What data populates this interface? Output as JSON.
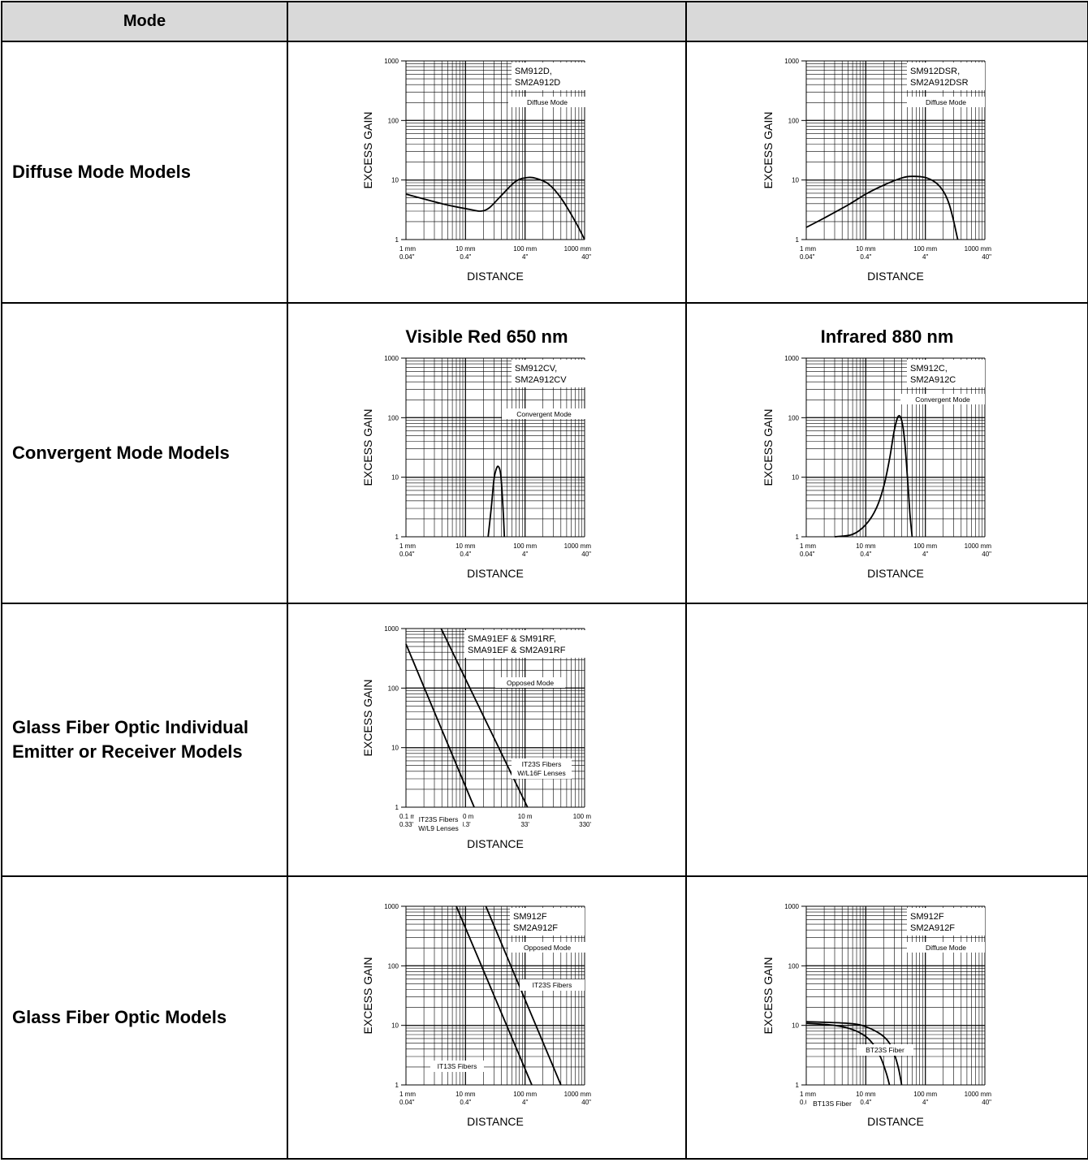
{
  "header": {
    "col_mode": "Mode",
    "col_2": "",
    "col_3": ""
  },
  "rows": [
    {
      "label_lines": [
        "Diffuse Mode Models"
      ]
    },
    {
      "label_lines": [
        "Convergent Mode Models"
      ],
      "col2_title": "Visible Red 650 nm",
      "col3_title": "Infrared 880 nm"
    },
    {
      "label_lines": [
        "Glass Fiber Optic Individual",
        "Emitter or Receiver Models"
      ]
    },
    {
      "label_lines": [
        "Glass Fiber Optic Models"
      ]
    }
  ],
  "chart_data": [
    {
      "id": "c1",
      "type": "line",
      "ylabel": "EXCESS GAIN",
      "xlabel": "DISTANCE",
      "x_scale": "log",
      "y_scale": "log",
      "xlim_mm": [
        1,
        1000
      ],
      "ylim": [
        1,
        1000
      ],
      "x_ticks": [
        [
          "1 mm",
          "0.04\""
        ],
        [
          "10 mm",
          "0.4\""
        ],
        [
          "100 mm",
          "4\""
        ],
        [
          "1000 mm",
          "40\""
        ]
      ],
      "y_ticks": [
        "1",
        "10",
        "100",
        "1000"
      ],
      "legend": [
        "SM912D,",
        "SM2A912D"
      ],
      "mode_label": "Diffuse Mode",
      "series": [
        {
          "x_mm": [
            1,
            2,
            5,
            12,
            18,
            25,
            40,
            70,
            110,
            160,
            250,
            400,
            700,
            1000
          ],
          "y": [
            5.8,
            4.8,
            3.8,
            3.2,
            3.0,
            3.4,
            5.5,
            9.5,
            11,
            10.5,
            8.5,
            5,
            2,
            1
          ]
        }
      ]
    },
    {
      "id": "c2",
      "type": "line",
      "ylabel": "EXCESS GAIN",
      "xlabel": "DISTANCE",
      "x_scale": "log",
      "y_scale": "log",
      "xlim_mm": [
        1,
        1000
      ],
      "ylim": [
        1,
        1000
      ],
      "x_ticks": [
        [
          "1 mm",
          "0.04\""
        ],
        [
          "10 mm",
          "0.4\""
        ],
        [
          "100 mm",
          "4\""
        ],
        [
          "1000 mm",
          "40\""
        ]
      ],
      "y_ticks": [
        "1",
        "10",
        "100",
        "1000"
      ],
      "legend": [
        "SM912DSR,",
        "SM2A912DSR"
      ],
      "mode_label": "Diffuse Mode",
      "series": [
        {
          "x_mm": [
            1,
            2,
            5,
            10,
            20,
            40,
            60,
            100,
            150,
            200,
            250,
            300,
            350
          ],
          "y": [
            1.6,
            2.3,
            3.8,
            5.8,
            8.2,
            10.8,
            11.5,
            11,
            9,
            6.5,
            4,
            2,
            1
          ]
        }
      ]
    },
    {
      "id": "c3",
      "type": "line",
      "ylabel": "EXCESS GAIN",
      "xlabel": "DISTANCE",
      "x_scale": "log",
      "y_scale": "log",
      "xlim_mm": [
        1,
        1000
      ],
      "ylim": [
        1,
        1000
      ],
      "x_ticks": [
        [
          "1 mm",
          "0.04\""
        ],
        [
          "10 mm",
          "0.4\""
        ],
        [
          "100 mm",
          "4\""
        ],
        [
          "1000 mm",
          "40\""
        ]
      ],
      "y_ticks": [
        "1",
        "10",
        "100",
        "1000"
      ],
      "legend": [
        "SM912CV,",
        "SM2A912CV"
      ],
      "mode_label": "Convergent Mode",
      "series": [
        {
          "x_mm": [
            24,
            27,
            30,
            33,
            36,
            39,
            42,
            45
          ],
          "y": [
            1,
            3,
            9,
            14,
            15,
            11,
            4,
            1
          ]
        }
      ]
    },
    {
      "id": "c4",
      "type": "line",
      "ylabel": "EXCESS GAIN",
      "xlabel": "DISTANCE",
      "x_scale": "log",
      "y_scale": "log",
      "xlim_mm": [
        1,
        1000
      ],
      "ylim": [
        1,
        1000
      ],
      "x_ticks": [
        [
          "1 mm",
          "0.04\""
        ],
        [
          "10 mm",
          "0.4\""
        ],
        [
          "100 mm",
          "4\""
        ],
        [
          "1000 mm",
          "40\""
        ]
      ],
      "y_ticks": [
        "1",
        "10",
        "100",
        "1000"
      ],
      "legend": [
        "SM912C,",
        "SM2A912C"
      ],
      "mode_label": "Convergent Mode",
      "series": [
        {
          "x_mm": [
            3,
            6,
            10,
            15,
            20,
            25,
            30,
            35,
            40,
            45,
            50,
            55,
            60
          ],
          "y": [
            1,
            1.1,
            1.6,
            3,
            7,
            20,
            60,
            105,
            90,
            40,
            10,
            2.5,
            1
          ]
        }
      ]
    },
    {
      "id": "c5",
      "type": "line",
      "ylabel": "EXCESS GAIN",
      "xlabel": "DISTANCE",
      "x_scale": "log",
      "y_scale": "log",
      "xlim_mm": [
        100,
        100000
      ],
      "ylim": [
        1,
        1000
      ],
      "x_ticks": [
        [
          "0.1 m",
          "0.33'"
        ],
        [
          "1.0 m",
          "3.3'"
        ],
        [
          "10 m",
          "33'"
        ],
        [
          "100 m",
          "330'"
        ]
      ],
      "y_ticks": [
        "1",
        "10",
        "100",
        "1000"
      ],
      "legend": [
        "SMA91EF & SM91RF,",
        "SMA91EF & SM2A91RF"
      ],
      "mode_label": "Opposed Mode",
      "series": [
        {
          "name": "IT23S Fibers W/L9 Lenses",
          "x_mm": [
            100,
            1400
          ],
          "y": [
            550,
            1
          ]
        },
        {
          "name": "IT23S Fibers W/L16F Lenses",
          "x_mm": [
            390,
            11000
          ],
          "y": [
            1000,
            1
          ]
        }
      ],
      "annotations": [
        {
          "lines": [
            "IT23S Fibers",
            "W/L16F Lenses"
          ]
        },
        {
          "lines": [
            "IT23S Fibers",
            "W/L9 Lenses"
          ]
        }
      ]
    },
    {
      "id": "c6",
      "type": "line",
      "ylabel": "EXCESS GAIN",
      "xlabel": "DISTANCE",
      "x_scale": "log",
      "y_scale": "log",
      "xlim_mm": [
        1,
        1000
      ],
      "ylim": [
        1,
        1000
      ],
      "x_ticks": [
        [
          "1 mm",
          "0.04\""
        ],
        [
          "10 mm",
          "0.4\""
        ],
        [
          "100 mm",
          "4\""
        ],
        [
          "1000 mm",
          "40\""
        ]
      ],
      "y_ticks": [
        "1",
        "10",
        "100",
        "1000"
      ],
      "legend": [
        "SM912F",
        "SM2A912F"
      ],
      "mode_label": "Opposed Mode",
      "series": [
        {
          "name": "IT13S Fibers",
          "x_mm": [
            7,
            130
          ],
          "y": [
            1000,
            1
          ]
        },
        {
          "name": "IT23S Fibers",
          "x_mm": [
            22,
            400
          ],
          "y": [
            1000,
            1
          ]
        }
      ],
      "annotations": [
        {
          "lines": [
            "IT23S Fibers"
          ]
        },
        {
          "lines": [
            "IT13S Fibers"
          ]
        }
      ]
    },
    {
      "id": "c7",
      "type": "line",
      "ylabel": "EXCESS GAIN",
      "xlabel": "DISTANCE",
      "x_scale": "log",
      "y_scale": "log",
      "xlim_mm": [
        1,
        1000
      ],
      "ylim": [
        1,
        1000
      ],
      "x_ticks": [
        [
          "1 mm",
          "0.04\""
        ],
        [
          "10 mm",
          "0.4\""
        ],
        [
          "100 mm",
          "4\""
        ],
        [
          "1000 mm",
          "40\""
        ]
      ],
      "y_ticks": [
        "1",
        "10",
        "100",
        "1000"
      ],
      "legend": [
        "SM912F",
        "SM2A912F"
      ],
      "mode_label": "Diffuse Mode",
      "series": [
        {
          "name": "BT13S Fiber",
          "x_mm": [
            1,
            3,
            6,
            10,
            14,
            18,
            22,
            25
          ],
          "y": [
            10.8,
            10,
            8.5,
            6.5,
            4.5,
            2.8,
            1.6,
            1
          ]
        },
        {
          "name": "BT23S Fiber",
          "x_mm": [
            1,
            5,
            10,
            20,
            28,
            35,
            40
          ],
          "y": [
            11.5,
            10.8,
            9.5,
            6.5,
            4,
            2,
            1
          ]
        }
      ],
      "annotations": [
        {
          "lines": [
            "BT23S Fiber"
          ]
        },
        {
          "lines": [
            "BT13S Fiber"
          ]
        }
      ]
    }
  ]
}
